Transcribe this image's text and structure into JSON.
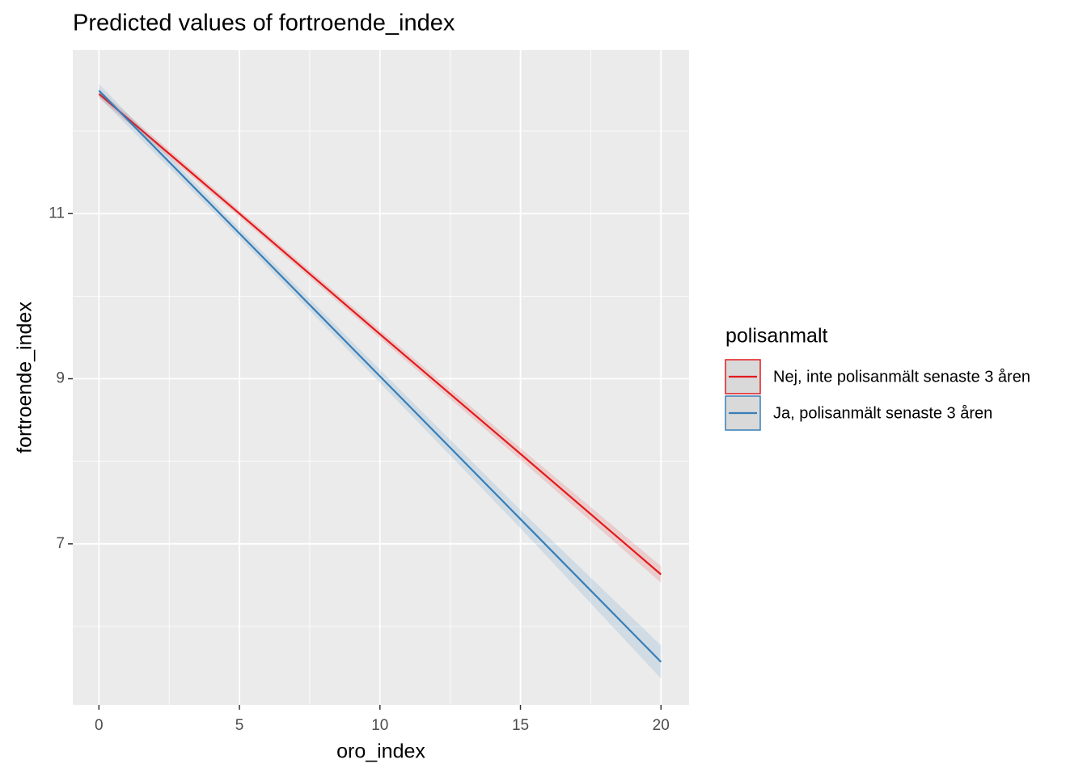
{
  "chart_data": {
    "type": "line",
    "title": "Predicted values of fortroende_index",
    "x_label": "oro_index",
    "y_label": "fortroende_index",
    "legend_title": "polisanmalt",
    "legend_position": "right",
    "grid": true,
    "x": [
      0,
      5,
      10,
      15,
      20
    ],
    "series": [
      {
        "name": "Nej, inte polisanmält senaste 3 åren",
        "color": "#e41a1c",
        "values": [
          12.45,
          11.0,
          9.54,
          8.09,
          6.63
        ],
        "lower": [
          12.4,
          10.96,
          9.49,
          8.02,
          6.53
        ],
        "upper": [
          12.5,
          11.04,
          9.59,
          8.16,
          6.73
        ]
      },
      {
        "name": "Ja, polisanmält senaste 3 åren",
        "color": "#377eb8",
        "values": [
          12.49,
          10.76,
          9.03,
          7.3,
          5.57
        ],
        "lower": [
          12.41,
          10.7,
          8.95,
          7.19,
          5.37
        ],
        "upper": [
          12.57,
          10.82,
          9.11,
          7.41,
          5.77
        ]
      }
    ],
    "xlim": [
      -0.93,
      21.0
    ],
    "ylim": [
      5.05,
      12.98
    ],
    "xticks": [
      0,
      5,
      10,
      15,
      20
    ],
    "yticks": [
      7,
      9,
      11
    ],
    "minor_xticks": [
      2.5,
      7.5,
      12.5,
      17.5
    ],
    "minor_yticks": [
      6,
      8,
      10,
      12
    ]
  }
}
